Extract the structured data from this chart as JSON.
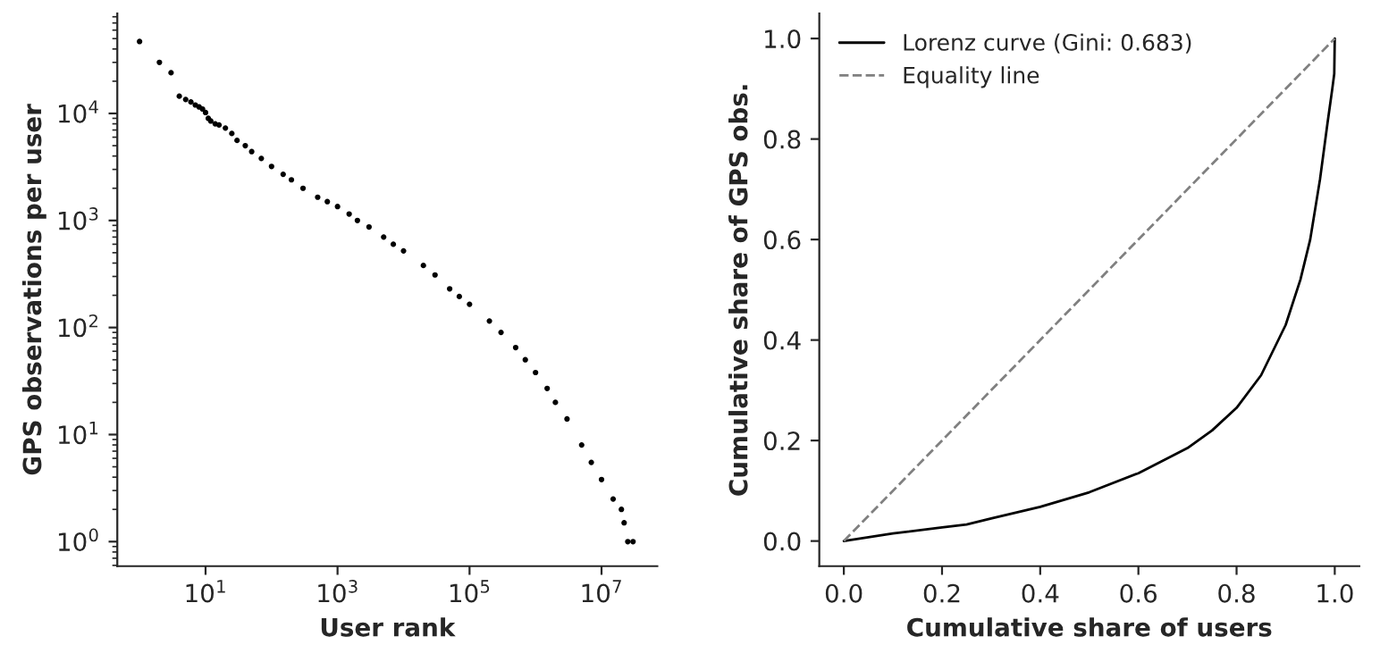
{
  "chart_data": [
    {
      "type": "scatter",
      "xlabel": "User rank",
      "ylabel": "GPS observations per user",
      "log": "xy",
      "marker": "circle",
      "grid": false,
      "legend": false,
      "xlim": [
        0.46,
        70000000
      ],
      "ylim": [
        0.59,
        86000
      ],
      "xticks": [
        {
          "value": 10,
          "label": "10$^{1}$"
        },
        {
          "value": 1000,
          "label": "10$^{3}$"
        },
        {
          "value": 100000,
          "label": "10$^{5}$"
        },
        {
          "value": 10000000,
          "label": "10$^{7}$"
        }
      ],
      "yticks": [
        {
          "value": 1,
          "label": "10$^{0}$"
        },
        {
          "value": 10,
          "label": "10$^{1}$"
        },
        {
          "value": 100,
          "label": "10$^{2}$"
        },
        {
          "value": 1000,
          "label": "10$^{3}$"
        },
        {
          "value": 10000,
          "label": "10$^{4}$"
        }
      ],
      "series": [
        {
          "color": "#000000",
          "x": [
            1,
            2,
            3,
            4,
            5,
            6,
            7,
            8,
            9,
            10,
            11,
            12,
            14,
            16,
            20,
            25,
            30,
            40,
            50,
            70,
            100,
            150,
            200,
            300,
            500,
            700,
            1000,
            1500,
            2000,
            3000,
            5000,
            7000,
            10000,
            20000,
            30000,
            50000,
            70000,
            100000,
            200000,
            300000,
            500000,
            700000,
            1000000,
            1500000,
            2000000,
            3000000,
            5000000,
            7000000,
            10000000,
            15000000,
            20000000,
            22000000,
            25000000,
            30000000
          ],
          "values": [
            47000,
            30000,
            24000,
            14500,
            13500,
            12800,
            12000,
            11500,
            11000,
            10200,
            9000,
            8500,
            8000,
            7800,
            7300,
            6500,
            5600,
            5000,
            4400,
            3800,
            3200,
            2700,
            2400,
            2000,
            1650,
            1500,
            1350,
            1150,
            1000,
            870,
            700,
            600,
            520,
            380,
            310,
            230,
            195,
            165,
            115,
            90,
            65,
            50,
            38,
            27,
            20,
            14,
            8,
            5.5,
            3.8,
            2.5,
            2,
            1.5,
            1,
            1
          ]
        }
      ]
    },
    {
      "type": "line",
      "xlabel": "Cumulative share of users",
      "ylabel": "Cumulative share of GPS obs.",
      "grid": false,
      "legend": "top left",
      "xlim": [
        -0.05,
        1.05
      ],
      "ylim": [
        -0.05,
        1.05
      ],
      "xticks": [
        {
          "value": 0,
          "label": "0.0"
        },
        {
          "value": 0.2,
          "label": "0.2"
        },
        {
          "value": 0.4,
          "label": "0.4"
        },
        {
          "value": 0.6,
          "label": "0.6"
        },
        {
          "value": 0.8,
          "label": "0.8"
        },
        {
          "value": 1,
          "label": "1.0"
        }
      ],
      "yticks": [
        {
          "value": 0,
          "label": "0.0"
        },
        {
          "value": 0.2,
          "label": "0.2"
        },
        {
          "value": 0.4,
          "label": "0.4"
        },
        {
          "value": 0.6,
          "label": "0.6"
        },
        {
          "value": 0.8,
          "label": "0.8"
        },
        {
          "value": 1,
          "label": "1.0"
        }
      ],
      "series": [
        {
          "name": "Lorenz curve (Gini: 0.683)",
          "color": "#000000",
          "line_style": "solid",
          "x": [
            0,
            0.1,
            0.2,
            0.25,
            0.3,
            0.4,
            0.5,
            0.6,
            0.7,
            0.75,
            0.8,
            0.85,
            0.9,
            0.93,
            0.95,
            0.97,
            0.985,
            0.995,
            0.999,
            1.0
          ],
          "values": [
            0,
            0.015,
            0.027,
            0.033,
            0.045,
            0.068,
            0.097,
            0.135,
            0.185,
            0.22,
            0.265,
            0.33,
            0.43,
            0.52,
            0.6,
            0.72,
            0.83,
            0.9,
            0.93,
            1.0
          ]
        },
        {
          "name": "Equality line",
          "color": "#808080",
          "line_style": "dashed",
          "x": [
            0,
            1
          ],
          "values": [
            0,
            1
          ]
        }
      ]
    }
  ]
}
